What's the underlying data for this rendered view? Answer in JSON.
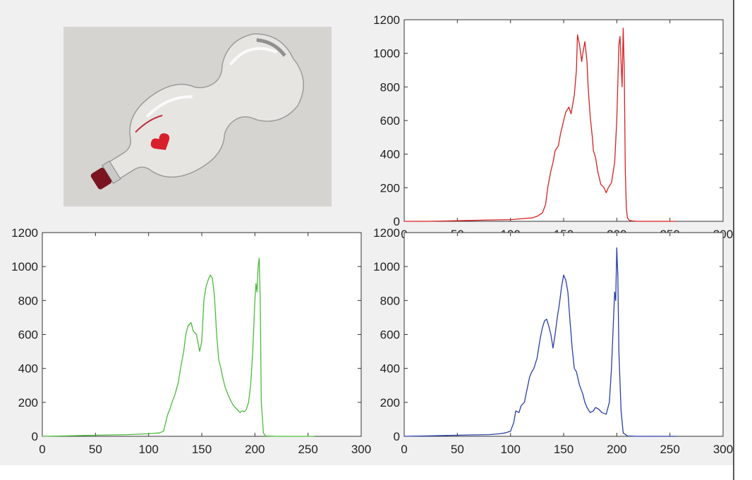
{
  "photo": {
    "subject": "bottle",
    "background_color": "#d6d4d0",
    "cap_color": "#7a1420",
    "label_color": "#d8202c"
  },
  "chart_data": [
    {
      "id": "red",
      "type": "line",
      "color": "#d62020",
      "xlim": [
        0,
        300
      ],
      "ylim": [
        0,
        1200
      ],
      "xticks": [
        0,
        50,
        100,
        150,
        200,
        250,
        300
      ],
      "yticks": [
        0,
        200,
        400,
        600,
        800,
        1000,
        1200
      ],
      "grid": false,
      "series": [
        {
          "x": [
            0,
            20,
            40,
            60,
            80,
            100,
            110,
            120,
            125,
            130,
            133,
            135,
            138,
            140,
            142,
            145,
            147,
            150,
            152,
            155,
            157,
            160,
            162,
            163,
            165,
            167,
            168,
            170,
            172,
            173,
            175,
            177,
            178,
            180,
            182,
            185,
            188,
            190,
            192,
            195,
            198,
            200,
            202,
            203,
            205,
            206,
            207,
            208,
            209,
            210,
            212,
            215,
            220,
            230,
            240,
            256
          ],
          "y": [
            0,
            0,
            2,
            5,
            8,
            10,
            15,
            20,
            30,
            50,
            100,
            200,
            300,
            350,
            420,
            450,
            520,
            600,
            650,
            680,
            640,
            750,
            900,
            1110,
            1050,
            950,
            1000,
            1070,
            950,
            800,
            620,
            500,
            420,
            380,
            300,
            220,
            200,
            170,
            200,
            230,
            350,
            600,
            1050,
            1100,
            800,
            1150,
            900,
            300,
            80,
            20,
            5,
            2,
            0,
            0,
            0,
            0
          ]
        }
      ]
    },
    {
      "id": "green",
      "type": "line",
      "color": "#4cbb3c",
      "xlim": [
        0,
        300
      ],
      "ylim": [
        0,
        1200
      ],
      "xticks": [
        0,
        50,
        100,
        150,
        200,
        250,
        300
      ],
      "yticks": [
        0,
        200,
        400,
        600,
        800,
        1000,
        1200
      ],
      "grid": false,
      "series": [
        {
          "x": [
            0,
            20,
            40,
            60,
            80,
            100,
            110,
            114,
            116,
            118,
            120,
            122,
            125,
            128,
            130,
            133,
            135,
            137,
            140,
            142,
            145,
            148,
            150,
            152,
            154,
            156,
            158,
            160,
            162,
            164,
            166,
            168,
            170,
            172,
            175,
            178,
            180,
            183,
            186,
            188,
            190,
            192,
            194,
            196,
            198,
            200,
            201,
            202,
            203,
            204,
            205,
            206,
            208,
            210,
            220,
            240,
            256
          ],
          "y": [
            0,
            2,
            5,
            8,
            10,
            15,
            20,
            30,
            80,
            130,
            160,
            200,
            250,
            320,
            400,
            500,
            600,
            650,
            670,
            620,
            600,
            500,
            560,
            800,
            880,
            920,
            950,
            930,
            820,
            600,
            450,
            400,
            340,
            290,
            240,
            200,
            180,
            160,
            140,
            150,
            145,
            160,
            200,
            300,
            500,
            800,
            900,
            850,
            1000,
            1050,
            800,
            200,
            20,
            2,
            0,
            0,
            0
          ]
        }
      ]
    },
    {
      "id": "blue",
      "type": "line",
      "color": "#2a3ea8",
      "xlim": [
        0,
        300
      ],
      "ylim": [
        0,
        1200
      ],
      "xticks": [
        0,
        50,
        100,
        150,
        200,
        250,
        300
      ],
      "yticks": [
        0,
        200,
        400,
        600,
        800,
        1000,
        1200
      ],
      "grid": false,
      "series": [
        {
          "x": [
            0,
            20,
            40,
            60,
            80,
            90,
            95,
            100,
            103,
            105,
            108,
            110,
            113,
            115,
            118,
            120,
            122,
            125,
            128,
            130,
            132,
            134,
            136,
            138,
            140,
            142,
            144,
            146,
            148,
            150,
            152,
            154,
            156,
            158,
            160,
            162,
            165,
            168,
            170,
            172,
            175,
            178,
            180,
            183,
            186,
            190,
            193,
            195,
            197,
            198,
            199,
            200,
            201,
            202,
            204,
            206,
            210,
            220,
            240,
            256
          ],
          "y": [
            0,
            2,
            5,
            8,
            10,
            15,
            20,
            30,
            80,
            150,
            140,
            180,
            200,
            260,
            350,
            380,
            400,
            460,
            580,
            640,
            680,
            690,
            650,
            600,
            520,
            600,
            700,
            780,
            880,
            950,
            920,
            850,
            680,
            520,
            400,
            380,
            300,
            250,
            200,
            170,
            140,
            150,
            170,
            160,
            140,
            130,
            200,
            400,
            700,
            850,
            800,
            1110,
            950,
            500,
            150,
            20,
            2,
            0,
            0,
            0
          ]
        }
      ]
    }
  ]
}
